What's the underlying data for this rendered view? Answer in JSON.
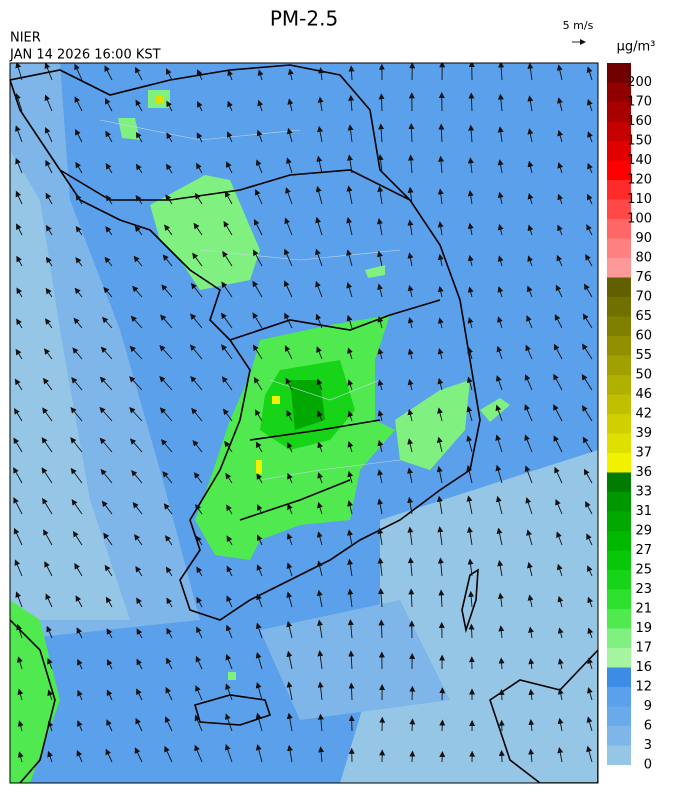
{
  "header": {
    "title": "PM-2.5",
    "agency": "NIER",
    "datetime": "JAN 14 2026 16:00 KST",
    "wind_reference": "5 m/s"
  },
  "colorbar": {
    "unit": "μg/m³",
    "levels": [
      0,
      3,
      6,
      9,
      12,
      16,
      17,
      19,
      21,
      23,
      25,
      27,
      29,
      31,
      33,
      36,
      37,
      39,
      42,
      46,
      50,
      55,
      60,
      65,
      70,
      76,
      80,
      90,
      100,
      110,
      120,
      140,
      150,
      160,
      170,
      200
    ],
    "colors": [
      "#96c6e6",
      "#7eb6ea",
      "#6aaaea",
      "#5aa0ea",
      "#3c8ce6",
      "#a6f4a0",
      "#80f080",
      "#50ea50",
      "#2ee02e",
      "#18d418",
      "#08c608",
      "#00b800",
      "#00a800",
      "#009800",
      "#007c00",
      "#f2f200",
      "#e0e000",
      "#d0d000",
      "#c0c000",
      "#b0b000",
      "#a0a000",
      "#909000",
      "#808000",
      "#707000",
      "#606000",
      "#ff9898",
      "#ff8080",
      "#ff6666",
      "#ff4848",
      "#ff2a2a",
      "#ff0000",
      "#e00000",
      "#c40000",
      "#a80000",
      "#900000",
      "#700000"
    ]
  }
}
